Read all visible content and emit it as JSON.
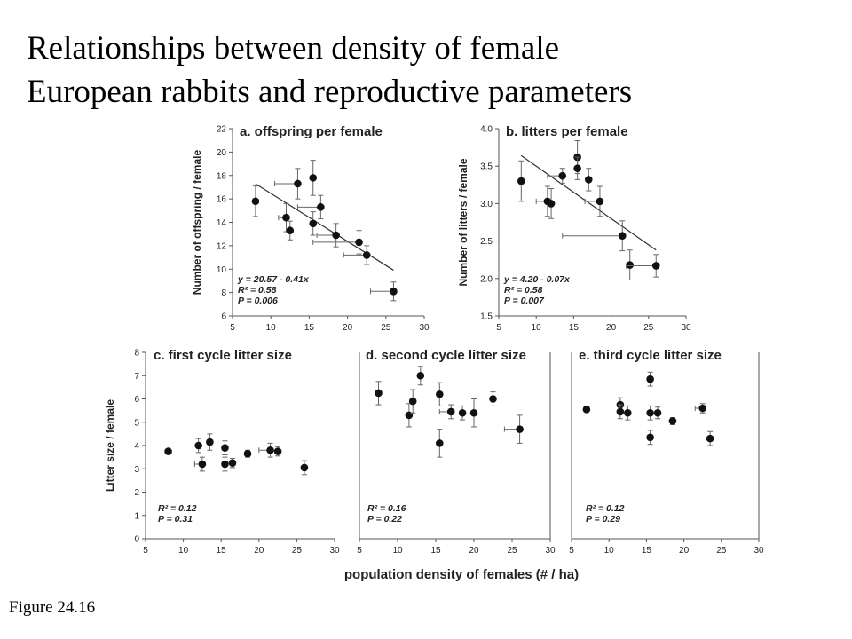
{
  "title": {
    "line1": "Relationships between density of female",
    "line2": "European rabbits and reproductive parameters"
  },
  "figure_label": "Figure 24.16",
  "x_axis_label": "population density of females (# / ha)",
  "colors": {
    "points": "#111111",
    "axis": "#555555",
    "regression": "#333333"
  },
  "chart_data": [
    {
      "id": "a",
      "type": "scatter",
      "title": "a. offspring per female",
      "ylabel": "Number of offspring / female",
      "xlim": [
        5,
        30
      ],
      "ylim": [
        6,
        22
      ],
      "xticks": [
        5,
        10,
        15,
        20,
        25,
        30
      ],
      "yticks": [
        6,
        8,
        10,
        12,
        14,
        16,
        18,
        20,
        22
      ],
      "stats": [
        "y = 20.57 - 0.41x",
        "R² = 0.58",
        "P = 0.006"
      ],
      "regression": {
        "intercept": 20.57,
        "slope": -0.41,
        "x_range": [
          8,
          26
        ]
      },
      "points": [
        {
          "x": 8,
          "y": 15.8,
          "yerr": 1.3
        },
        {
          "x": 12,
          "y": 14.4,
          "yerr": 1.2,
          "xerr": 1
        },
        {
          "x": 12.5,
          "y": 13.3,
          "yerr": 0.8
        },
        {
          "x": 13.5,
          "y": 17.3,
          "yerr": 1.3,
          "xerr": 3
        },
        {
          "x": 15.5,
          "y": 17.8,
          "yerr": 1.5
        },
        {
          "x": 15.5,
          "y": 13.9,
          "yerr": 1
        },
        {
          "x": 16.5,
          "y": 15.3,
          "yerr": 1,
          "xerr": 3
        },
        {
          "x": 18.5,
          "y": 12.9,
          "yerr": 1,
          "xerr": 2.5
        },
        {
          "x": 21.5,
          "y": 12.3,
          "yerr": 1,
          "xerr": 6
        },
        {
          "x": 22.5,
          "y": 11.2,
          "yerr": 0.8,
          "xerr": 3
        },
        {
          "x": 26,
          "y": 8.1,
          "yerr": 0.8,
          "xerr": 3
        }
      ]
    },
    {
      "id": "b",
      "type": "scatter",
      "title": "b. litters per female",
      "ylabel": "Number of litters / female",
      "xlim": [
        5,
        30
      ],
      "ylim": [
        1.5,
        4.0
      ],
      "xticks": [
        5,
        10,
        15,
        20,
        25,
        30
      ],
      "yticks": [
        1.5,
        2.0,
        2.5,
        3.0,
        3.5,
        4.0
      ],
      "stats": [
        "y = 4.20 - 0.07x",
        "R² = 0.58",
        "P = 0.007"
      ],
      "regression": {
        "intercept": 4.2,
        "slope": -0.07,
        "x_range": [
          8,
          26
        ]
      },
      "points": [
        {
          "x": 8,
          "y": 3.3,
          "yerr": 0.27
        },
        {
          "x": 11.5,
          "y": 3.03,
          "yerr": 0.2,
          "xerr": 1.5
        },
        {
          "x": 12,
          "y": 3.0,
          "yerr": 0.2
        },
        {
          "x": 13.5,
          "y": 3.37,
          "yerr": 0.1,
          "xerr": 2
        },
        {
          "x": 15.5,
          "y": 3.62,
          "yerr": 0.22
        },
        {
          "x": 15.5,
          "y": 3.47,
          "yerr": 0.15
        },
        {
          "x": 17,
          "y": 3.32,
          "yerr": 0.15
        },
        {
          "x": 18.5,
          "y": 3.03,
          "yerr": 0.2,
          "xerr": 2
        },
        {
          "x": 21.5,
          "y": 2.57,
          "yerr": 0.2,
          "xerr": 8
        },
        {
          "x": 22.5,
          "y": 2.18,
          "yerr": 0.2
        },
        {
          "x": 26,
          "y": 2.17,
          "yerr": 0.15,
          "xerr": 4
        }
      ]
    },
    {
      "id": "c",
      "type": "scatter",
      "title": "c. first cycle litter size",
      "ylabel": "Litter size / female",
      "xlim": [
        5,
        30
      ],
      "ylim": [
        0,
        8
      ],
      "xticks": [
        5,
        10,
        15,
        20,
        25,
        30
      ],
      "yticks": [
        0,
        1,
        2,
        3,
        4,
        5,
        6,
        7,
        8
      ],
      "stats": [
        "R² = 0.12",
        "P = 0.31"
      ],
      "points": [
        {
          "x": 8,
          "y": 3.75,
          "yerr": 0.1
        },
        {
          "x": 12,
          "y": 4.0,
          "yerr": 0.3
        },
        {
          "x": 12.5,
          "y": 3.2,
          "yerr": 0.3,
          "xerr": 1
        },
        {
          "x": 13.5,
          "y": 4.15,
          "yerr": 0.35
        },
        {
          "x": 15.5,
          "y": 3.9,
          "yerr": 0.3
        },
        {
          "x": 15.5,
          "y": 3.2,
          "yerr": 0.3
        },
        {
          "x": 16.5,
          "y": 3.25,
          "yerr": 0.2
        },
        {
          "x": 18.5,
          "y": 3.65,
          "yerr": 0.15
        },
        {
          "x": 21.5,
          "y": 3.8,
          "yerr": 0.3,
          "xerr": 1.5
        },
        {
          "x": 22.5,
          "y": 3.75,
          "yerr": 0.2
        },
        {
          "x": 26,
          "y": 3.05,
          "yerr": 0.3
        }
      ]
    },
    {
      "id": "d",
      "type": "scatter",
      "title": "d. second cycle litter size",
      "xlim": [
        5,
        30
      ],
      "ylim": [
        0,
        8
      ],
      "xticks": [
        5,
        10,
        15,
        20,
        25,
        30
      ],
      "stats": [
        "R² = 0.16",
        "P = 0.22"
      ],
      "points": [
        {
          "x": 7.5,
          "y": 6.25,
          "yerr": 0.5
        },
        {
          "x": 11.5,
          "y": 5.3,
          "yerr": 0.5
        },
        {
          "x": 12,
          "y": 5.9,
          "yerr": 0.5
        },
        {
          "x": 13,
          "y": 7.0,
          "yerr": 0.4
        },
        {
          "x": 15.5,
          "y": 6.2,
          "yerr": 0.5
        },
        {
          "x": 15.5,
          "y": 4.1,
          "yerr": 0.6
        },
        {
          "x": 17,
          "y": 5.45,
          "yerr": 0.3,
          "xerr": 1.5
        },
        {
          "x": 18.5,
          "y": 5.4,
          "yerr": 0.3
        },
        {
          "x": 20,
          "y": 5.4,
          "yerr": 0.6
        },
        {
          "x": 22.5,
          "y": 6.0,
          "yerr": 0.3
        },
        {
          "x": 26,
          "y": 4.7,
          "yerr": 0.6,
          "xerr": 2
        }
      ]
    },
    {
      "id": "e",
      "type": "scatter",
      "title": "e. third cycle litter size",
      "xlim": [
        5,
        30
      ],
      "ylim": [
        0,
        8
      ],
      "xticks": [
        5,
        10,
        15,
        20,
        25,
        30
      ],
      "stats": [
        "R² = 0.12",
        "P = 0.29"
      ],
      "points": [
        {
          "x": 7,
          "y": 5.55,
          "yerr": 0.1
        },
        {
          "x": 11.5,
          "y": 5.75,
          "yerr": 0.3
        },
        {
          "x": 11.5,
          "y": 5.45,
          "yerr": 0.3
        },
        {
          "x": 12.5,
          "y": 5.4,
          "yerr": 0.3
        },
        {
          "x": 15.5,
          "y": 6.85,
          "yerr": 0.3
        },
        {
          "x": 15.5,
          "y": 5.4,
          "yerr": 0.3
        },
        {
          "x": 15.5,
          "y": 4.35,
          "yerr": 0.3
        },
        {
          "x": 16.5,
          "y": 5.4,
          "yerr": 0.25
        },
        {
          "x": 18.5,
          "y": 5.05,
          "yerr": 0.15
        },
        {
          "x": 22.5,
          "y": 5.6,
          "yerr": 0.2,
          "xerr": 1
        },
        {
          "x": 23.5,
          "y": 4.3,
          "yerr": 0.3
        }
      ]
    }
  ]
}
